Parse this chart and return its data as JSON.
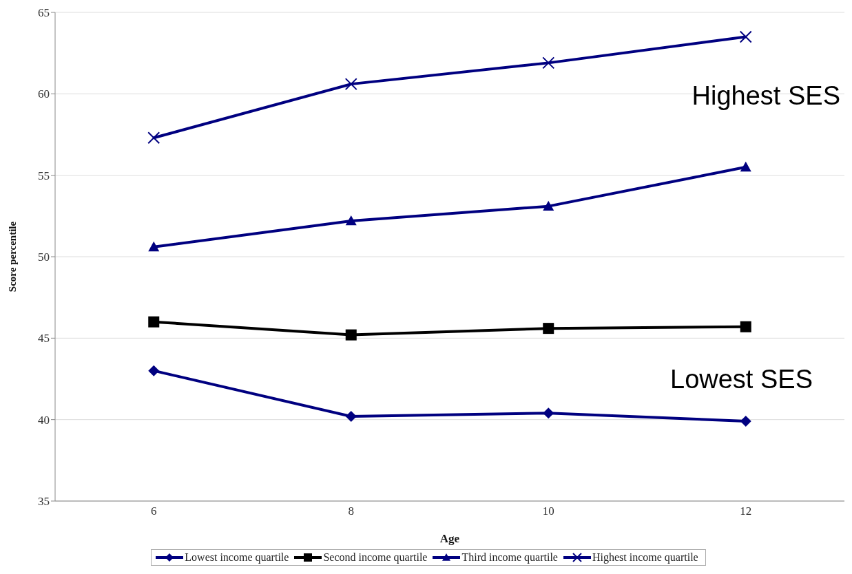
{
  "chart_data": {
    "type": "line",
    "xlabel": "Age",
    "ylabel": "Score percentile",
    "categories": [
      "6",
      "8",
      "10",
      "12"
    ],
    "ylim": [
      35,
      65
    ],
    "yticks": [
      35,
      40,
      45,
      50,
      55,
      60,
      65
    ],
    "grid": "y",
    "legend": "bottom",
    "series": [
      {
        "name": "Lowest income quartile",
        "color": "#000080",
        "marker": "diamond",
        "values": [
          43.0,
          40.2,
          40.4,
          39.9
        ]
      },
      {
        "name": "Second income quartile",
        "color": "#000000",
        "marker": "square",
        "values": [
          46.0,
          45.2,
          45.6,
          45.7
        ]
      },
      {
        "name": "Third income quartile",
        "color": "#000080",
        "marker": "triangle",
        "values": [
          50.6,
          52.2,
          53.1,
          55.5
        ]
      },
      {
        "name": "Highest income quartile",
        "color": "#000080",
        "marker": "cross",
        "values": [
          57.3,
          60.6,
          61.9,
          63.5
        ]
      }
    ],
    "annotations": [
      "Highest SES",
      "Lowest SES"
    ]
  }
}
